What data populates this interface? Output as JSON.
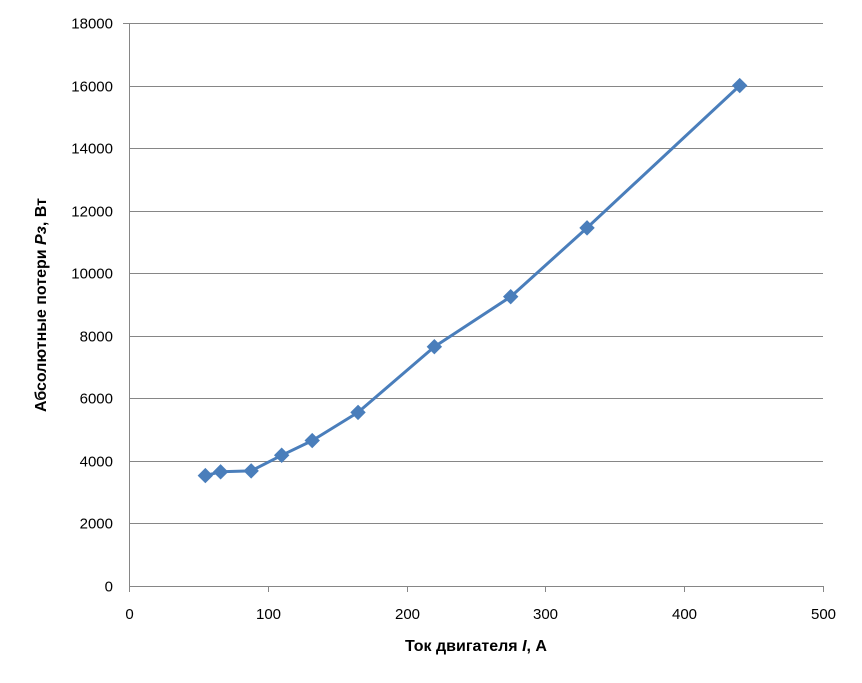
{
  "chart_data": {
    "type": "line",
    "title": "",
    "xlabel_prefix": "Ток двигателя ",
    "xlabel_var": "I",
    "xlabel_suffix": ", А",
    "ylabel_prefix": "Абсолютные потери ",
    "ylabel_var": "Рз",
    "ylabel_suffix": ", Вт",
    "xlim": [
      0,
      500
    ],
    "ylim": [
      0,
      18000
    ],
    "xticks": [
      0,
      100,
      200,
      300,
      400,
      500
    ],
    "yticks": [
      0,
      2000,
      4000,
      6000,
      8000,
      10000,
      12000,
      14000,
      16000,
      18000
    ],
    "grid": "horizontal",
    "legend": "none",
    "series": [
      {
        "color": "#4a7ebb",
        "marker": "diamond",
        "x": [
          55,
          66,
          88,
          110,
          132,
          165,
          220,
          275,
          330,
          440
        ],
        "y": [
          3530,
          3650,
          3680,
          4180,
          4650,
          5550,
          7650,
          9250,
          11450,
          16000
        ]
      }
    ]
  }
}
